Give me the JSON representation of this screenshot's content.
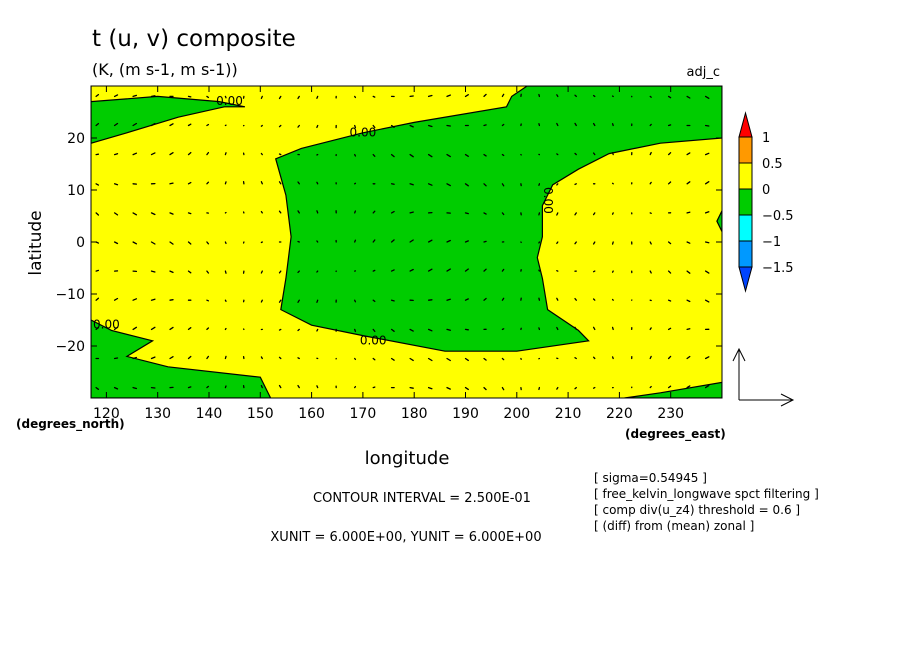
{
  "chart_data": {
    "type": "contour",
    "title": "t (u, v) composite",
    "subtitle": "(K, (m s-1, m s-1))",
    "top_right_label": "adj_c",
    "xlabel": "longitude",
    "ylabel": "latitude",
    "x_unit_label": "(degrees_east)",
    "y_unit_label": "(degrees_north)",
    "xlim": [
      117,
      240
    ],
    "ylim": [
      -30,
      30
    ],
    "x_ticks": [
      120,
      130,
      140,
      150,
      160,
      170,
      180,
      190,
      200,
      210,
      220,
      230
    ],
    "y_ticks": [
      -20,
      -10,
      0,
      10,
      20
    ],
    "x_tick_labels": [
      "120",
      "130",
      "140",
      "150",
      "160",
      "170",
      "180",
      "190",
      "200",
      "210",
      "220",
      "230"
    ],
    "y_tick_labels": [
      "−20",
      "−10",
      "0",
      "10",
      "20"
    ],
    "contour_line_value": 0.0,
    "contour_labels": [
      {
        "text": "0.00",
        "lon": 144,
        "lat": 27
      },
      {
        "text": "0.00",
        "lon": 170,
        "lat": 21
      },
      {
        "text": "0.00",
        "lon": 206,
        "lat": 8
      },
      {
        "text": "0.00",
        "lon": 120,
        "lat": -16
      },
      {
        "text": "0.00",
        "lon": 172,
        "lat": -19
      }
    ],
    "filled_levels": [
      {
        "from": -0.5,
        "to": 0.0,
        "color": "#00cc00"
      },
      {
        "from": 0.0,
        "to": 0.5,
        "color": "#ffff00"
      }
    ],
    "colorbar": {
      "labels": [
        "1",
        "0.5",
        "0",
        "−0.5",
        "−1",
        "−1.5"
      ],
      "values": [
        1,
        0.5,
        0,
        -0.5,
        -1,
        -1.5
      ],
      "colors": [
        "#ff0000",
        "#ff9900",
        "#ffff00",
        "#00cc00",
        "#00ffff",
        "#0099ff",
        "#0044ff"
      ]
    },
    "vector_reference": {
      "xunit": 6.0,
      "yunit": 6.0
    },
    "grid": false
  },
  "footer": {
    "contour_interval": "CONTOUR INTERVAL = 2.500E-01",
    "units": "XUNIT = 6.000E+00, YUNIT = 6.000E+00"
  },
  "notes": [
    "[ sigma=0.54945 ]",
    "[ free_kelvin_longwave spct filtering ]",
    "[ comp div(u_z4) threshold = 0.6 ]",
    "[ (diff) from (mean) zonal ]"
  ],
  "colors": {
    "green": "#00cc00",
    "yellow": "#ffff00"
  }
}
